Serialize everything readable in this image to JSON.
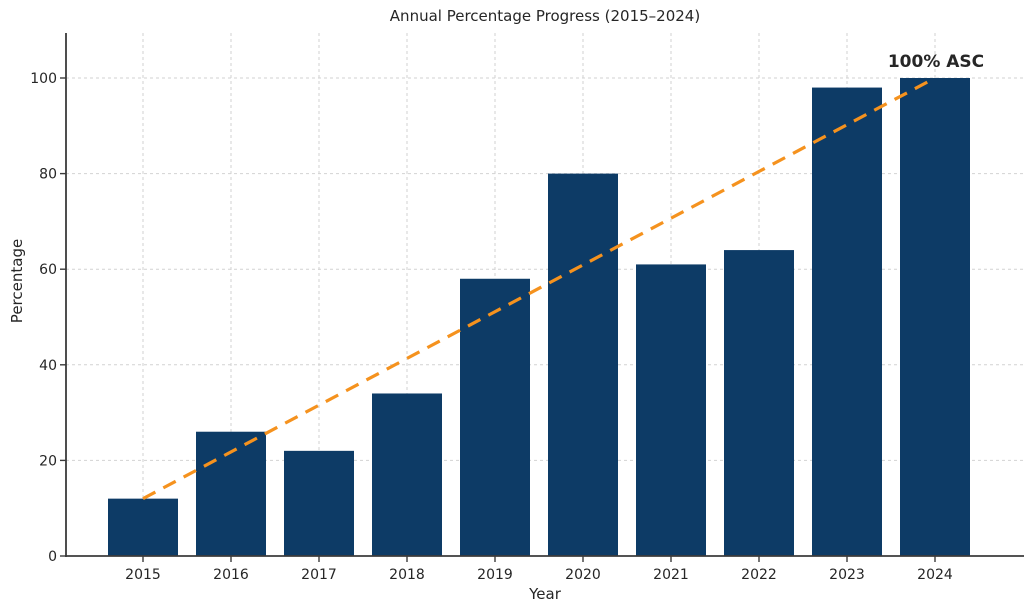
{
  "chart_data": {
    "type": "bar",
    "title": "Annual Percentage Progress (2015–2024)",
    "xlabel": "Year",
    "ylabel": "Percentage",
    "categories": [
      "2015",
      "2016",
      "2017",
      "2018",
      "2019",
      "2020",
      "2021",
      "2022",
      "2023",
      "2024"
    ],
    "series": [
      {
        "name": "Percentage",
        "type": "bar",
        "values": [
          12,
          26,
          22,
          34,
          58,
          80,
          61,
          64,
          98,
          100
        ]
      },
      {
        "name": "Trend",
        "type": "line",
        "line_style": "dashed",
        "points": [
          [
            "2015",
            12
          ],
          [
            "2024",
            100
          ]
        ]
      }
    ],
    "yticks": [
      0,
      20,
      40,
      60,
      80,
      100
    ],
    "ylim": [
      0,
      110
    ],
    "grid": "dashed, both axes",
    "legend_position": "none",
    "annotation": {
      "text": "100% ASC",
      "anchor_category": "2024",
      "anchor_value": 100
    }
  },
  "colors": {
    "bar": "#0d3b66",
    "trend": "#f5921e",
    "annotation": "#f5921e",
    "grid": "#d2d2d2",
    "axis": "#3b3b3b",
    "text": "#262626",
    "background": "#ffffff"
  }
}
